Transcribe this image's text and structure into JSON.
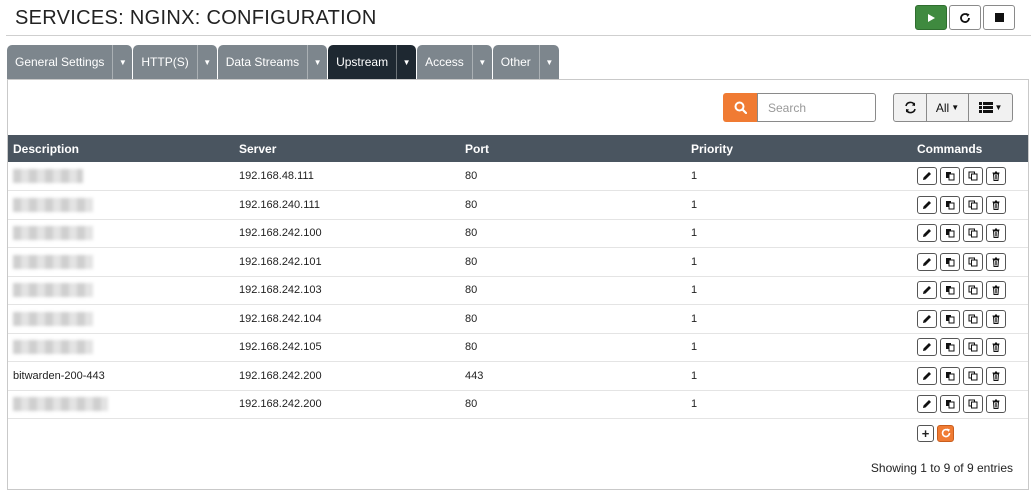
{
  "page": {
    "title": "SERVICES: NGINX: CONFIGURATION"
  },
  "service_controls": {
    "start_icon": "play-icon",
    "restart_icon": "refresh-icon",
    "stop_icon": "stop-icon"
  },
  "tabs": [
    {
      "label": "General Settings",
      "active": false
    },
    {
      "label": "HTTP(S)",
      "active": false
    },
    {
      "label": "Data Streams",
      "active": false
    },
    {
      "label": "Upstream",
      "active": true
    },
    {
      "label": "Access",
      "active": false
    },
    {
      "label": "Other",
      "active": false
    }
  ],
  "toolbar": {
    "search_placeholder": "Search",
    "filter_label": "All"
  },
  "table": {
    "headers": {
      "description": "Description",
      "server": "Server",
      "port": "Port",
      "priority": "Priority",
      "commands": "Commands"
    },
    "rows": [
      {
        "description": "",
        "server": "192.168.48.111",
        "port": "80",
        "priority": "1"
      },
      {
        "description": "",
        "server": "192.168.240.111",
        "port": "80",
        "priority": "1"
      },
      {
        "description": "",
        "server": "192.168.242.100",
        "port": "80",
        "priority": "1"
      },
      {
        "description": "",
        "server": "192.168.242.101",
        "port": "80",
        "priority": "1"
      },
      {
        "description": "",
        "server": "192.168.242.103",
        "port": "80",
        "priority": "1"
      },
      {
        "description": "",
        "server": "192.168.242.104",
        "port": "80",
        "priority": "1"
      },
      {
        "description": "",
        "server": "192.168.242.105",
        "port": "80",
        "priority": "1"
      },
      {
        "description": "bitwarden-200-443",
        "server": "192.168.242.200",
        "port": "443",
        "priority": "1"
      },
      {
        "description": "",
        "server": "192.168.242.200",
        "port": "80",
        "priority": "1"
      }
    ]
  },
  "footer": {
    "info": "Showing 1 to 9 of 9 entries"
  },
  "colors": {
    "accent": "#f07b33",
    "start": "#3f8a3f",
    "header": "#4a5560",
    "active_tab": "#1e2831"
  }
}
